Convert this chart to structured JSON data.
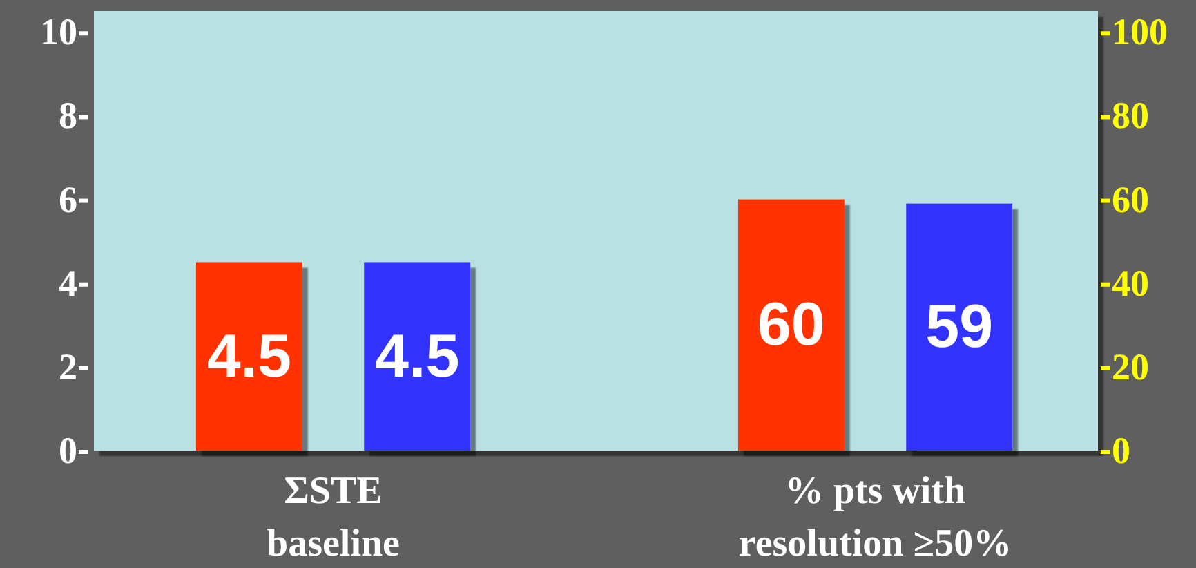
{
  "chart_data": {
    "type": "bar",
    "categories": [
      "ΣSTE\nbaseline",
      "% pts with\nresolution ≥50%"
    ],
    "series": [
      {
        "color": "#ff3300",
        "values": [
          4.5,
          null
        ]
      },
      {
        "color": "#3333ff",
        "values": [
          4.5,
          null
        ]
      },
      {
        "color": "#ff3300",
        "axis": "y2",
        "values": [
          null,
          60
        ]
      },
      {
        "color": "#3333ff",
        "axis": "y2",
        "values": [
          null,
          59
        ]
      }
    ],
    "ylim": [
      0,
      10.5
    ],
    "yticks": [
      0,
      2,
      4,
      6,
      8,
      10
    ],
    "y2lim": [
      0,
      105
    ],
    "y2ticks": [
      0,
      20,
      40,
      60,
      80,
      100
    ],
    "data_labels": true
  }
}
